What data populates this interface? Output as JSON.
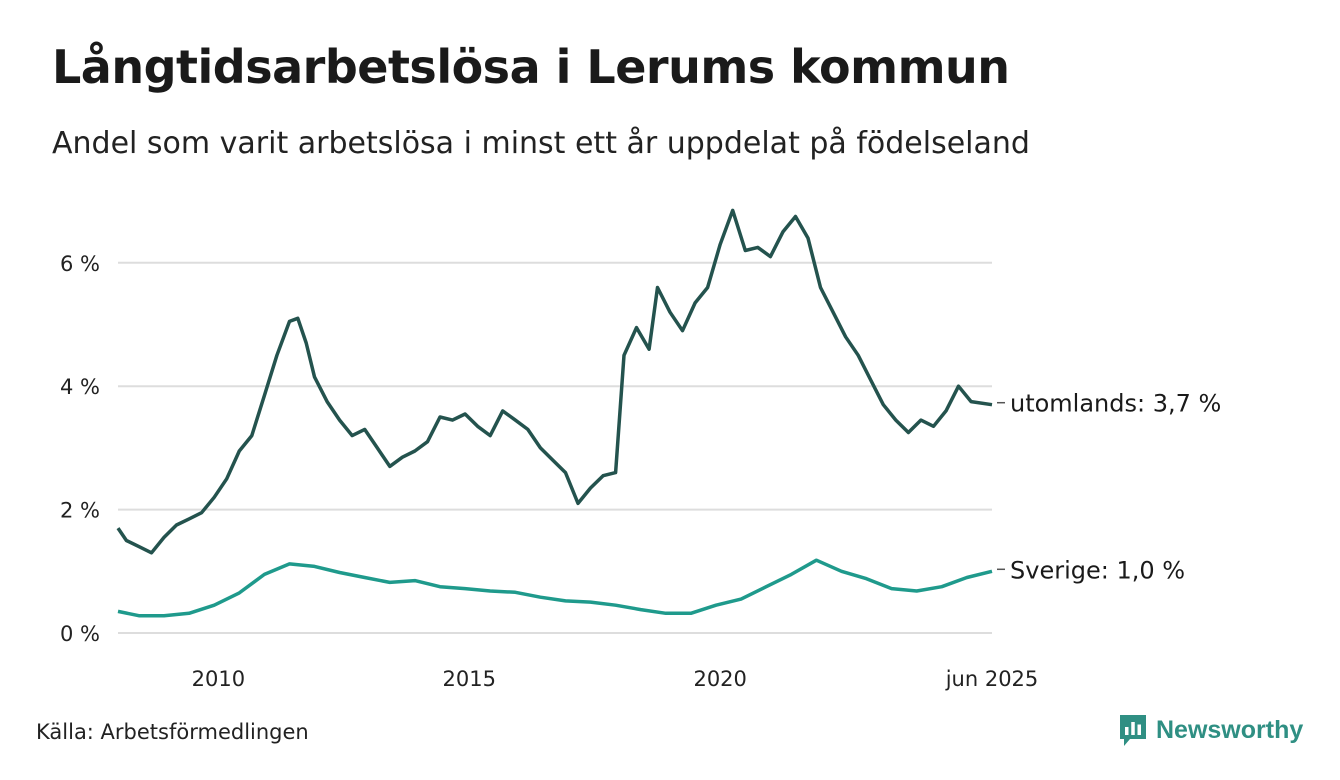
{
  "title": "Långtidsarbetslösa i Lerums kommun",
  "subtitle": "Andel som varit arbetslösa i minst ett år uppdelat på födelseland",
  "source": "Källa: Arbetsförmedlingen",
  "brand": {
    "name": "Newsworthy",
    "icon": "newsworthy-logo-icon"
  },
  "colors": {
    "utomlands": "#24534e",
    "sverige": "#1f9a8c",
    "grid": "#dddddd"
  },
  "chart_data": {
    "type": "line",
    "grid": true,
    "ylim": [
      0,
      7
    ],
    "yticks": [
      0,
      2,
      4,
      6
    ],
    "ytick_labels": [
      "0 %",
      "2 %",
      "4 %",
      "6 %"
    ],
    "xtick_labels": [
      "2010",
      "2015",
      "2020",
      "jun 2025"
    ],
    "series": [
      {
        "name": "utomlands",
        "end_label": "utomlands: 3,7 %",
        "points": [
          [
            "2008-01",
            1.7
          ],
          [
            "2008-03",
            1.5
          ],
          [
            "2008-06",
            1.4
          ],
          [
            "2008-09",
            1.3
          ],
          [
            "2008-12",
            1.55
          ],
          [
            "2009-03",
            1.75
          ],
          [
            "2009-06",
            1.85
          ],
          [
            "2009-09",
            1.95
          ],
          [
            "2009-12",
            2.2
          ],
          [
            "2010-03",
            2.5
          ],
          [
            "2010-06",
            2.95
          ],
          [
            "2010-09",
            3.2
          ],
          [
            "2010-12",
            3.85
          ],
          [
            "2011-03",
            4.5
          ],
          [
            "2011-06",
            5.05
          ],
          [
            "2011-08",
            5.1
          ],
          [
            "2011-10",
            4.7
          ],
          [
            "2011-12",
            4.15
          ],
          [
            "2012-03",
            3.75
          ],
          [
            "2012-06",
            3.45
          ],
          [
            "2012-09",
            3.2
          ],
          [
            "2012-12",
            3.3
          ],
          [
            "2013-03",
            3.0
          ],
          [
            "2013-06",
            2.7
          ],
          [
            "2013-09",
            2.85
          ],
          [
            "2013-12",
            2.95
          ],
          [
            "2014-03",
            3.1
          ],
          [
            "2014-06",
            3.5
          ],
          [
            "2014-09",
            3.45
          ],
          [
            "2014-12",
            3.55
          ],
          [
            "2015-03",
            3.35
          ],
          [
            "2015-06",
            3.2
          ],
          [
            "2015-09",
            3.6
          ],
          [
            "2015-12",
            3.45
          ],
          [
            "2016-03",
            3.3
          ],
          [
            "2016-06",
            3.0
          ],
          [
            "2016-09",
            2.8
          ],
          [
            "2016-12",
            2.6
          ],
          [
            "2017-03",
            2.1
          ],
          [
            "2017-06",
            2.35
          ],
          [
            "2017-09",
            2.55
          ],
          [
            "2017-12",
            2.6
          ],
          [
            "2018-02",
            4.5
          ],
          [
            "2018-05",
            4.95
          ],
          [
            "2018-08",
            4.6
          ],
          [
            "2018-10",
            5.6
          ],
          [
            "2019-01",
            5.2
          ],
          [
            "2019-04",
            4.9
          ],
          [
            "2019-07",
            5.35
          ],
          [
            "2019-10",
            5.6
          ],
          [
            "2020-01",
            6.3
          ],
          [
            "2020-04",
            6.85
          ],
          [
            "2020-07",
            6.2
          ],
          [
            "2020-10",
            6.25
          ],
          [
            "2021-01",
            6.1
          ],
          [
            "2021-04",
            6.5
          ],
          [
            "2021-07",
            6.75
          ],
          [
            "2021-10",
            6.4
          ],
          [
            "2022-01",
            5.6
          ],
          [
            "2022-04",
            5.2
          ],
          [
            "2022-07",
            4.8
          ],
          [
            "2022-10",
            4.5
          ],
          [
            "2023-01",
            4.1
          ],
          [
            "2023-04",
            3.7
          ],
          [
            "2023-07",
            3.45
          ],
          [
            "2023-10",
            3.25
          ],
          [
            "2024-01",
            3.45
          ],
          [
            "2024-04",
            3.35
          ],
          [
            "2024-07",
            3.6
          ],
          [
            "2024-10",
            4.0
          ],
          [
            "2025-01",
            3.75
          ],
          [
            "2025-06",
            3.7
          ]
        ]
      },
      {
        "name": "Sverige",
        "end_label": "Sverige: 1,0 %",
        "points": [
          [
            "2008-01",
            0.35
          ],
          [
            "2008-06",
            0.28
          ],
          [
            "2008-12",
            0.28
          ],
          [
            "2009-06",
            0.32
          ],
          [
            "2009-12",
            0.45
          ],
          [
            "2010-06",
            0.65
          ],
          [
            "2010-12",
            0.95
          ],
          [
            "2011-06",
            1.12
          ],
          [
            "2011-12",
            1.08
          ],
          [
            "2012-06",
            0.98
          ],
          [
            "2012-12",
            0.9
          ],
          [
            "2013-06",
            0.82
          ],
          [
            "2013-12",
            0.85
          ],
          [
            "2014-06",
            0.75
          ],
          [
            "2014-12",
            0.72
          ],
          [
            "2015-06",
            0.68
          ],
          [
            "2015-12",
            0.66
          ],
          [
            "2016-06",
            0.58
          ],
          [
            "2016-12",
            0.52
          ],
          [
            "2017-06",
            0.5
          ],
          [
            "2017-12",
            0.45
          ],
          [
            "2018-06",
            0.38
          ],
          [
            "2018-12",
            0.32
          ],
          [
            "2019-06",
            0.32
          ],
          [
            "2019-12",
            0.45
          ],
          [
            "2020-06",
            0.55
          ],
          [
            "2020-12",
            0.75
          ],
          [
            "2021-06",
            0.95
          ],
          [
            "2021-12",
            1.18
          ],
          [
            "2022-06",
            1.0
          ],
          [
            "2022-12",
            0.88
          ],
          [
            "2023-06",
            0.72
          ],
          [
            "2023-12",
            0.68
          ],
          [
            "2024-06",
            0.75
          ],
          [
            "2024-12",
            0.9
          ],
          [
            "2025-06",
            1.0
          ]
        ]
      }
    ]
  }
}
